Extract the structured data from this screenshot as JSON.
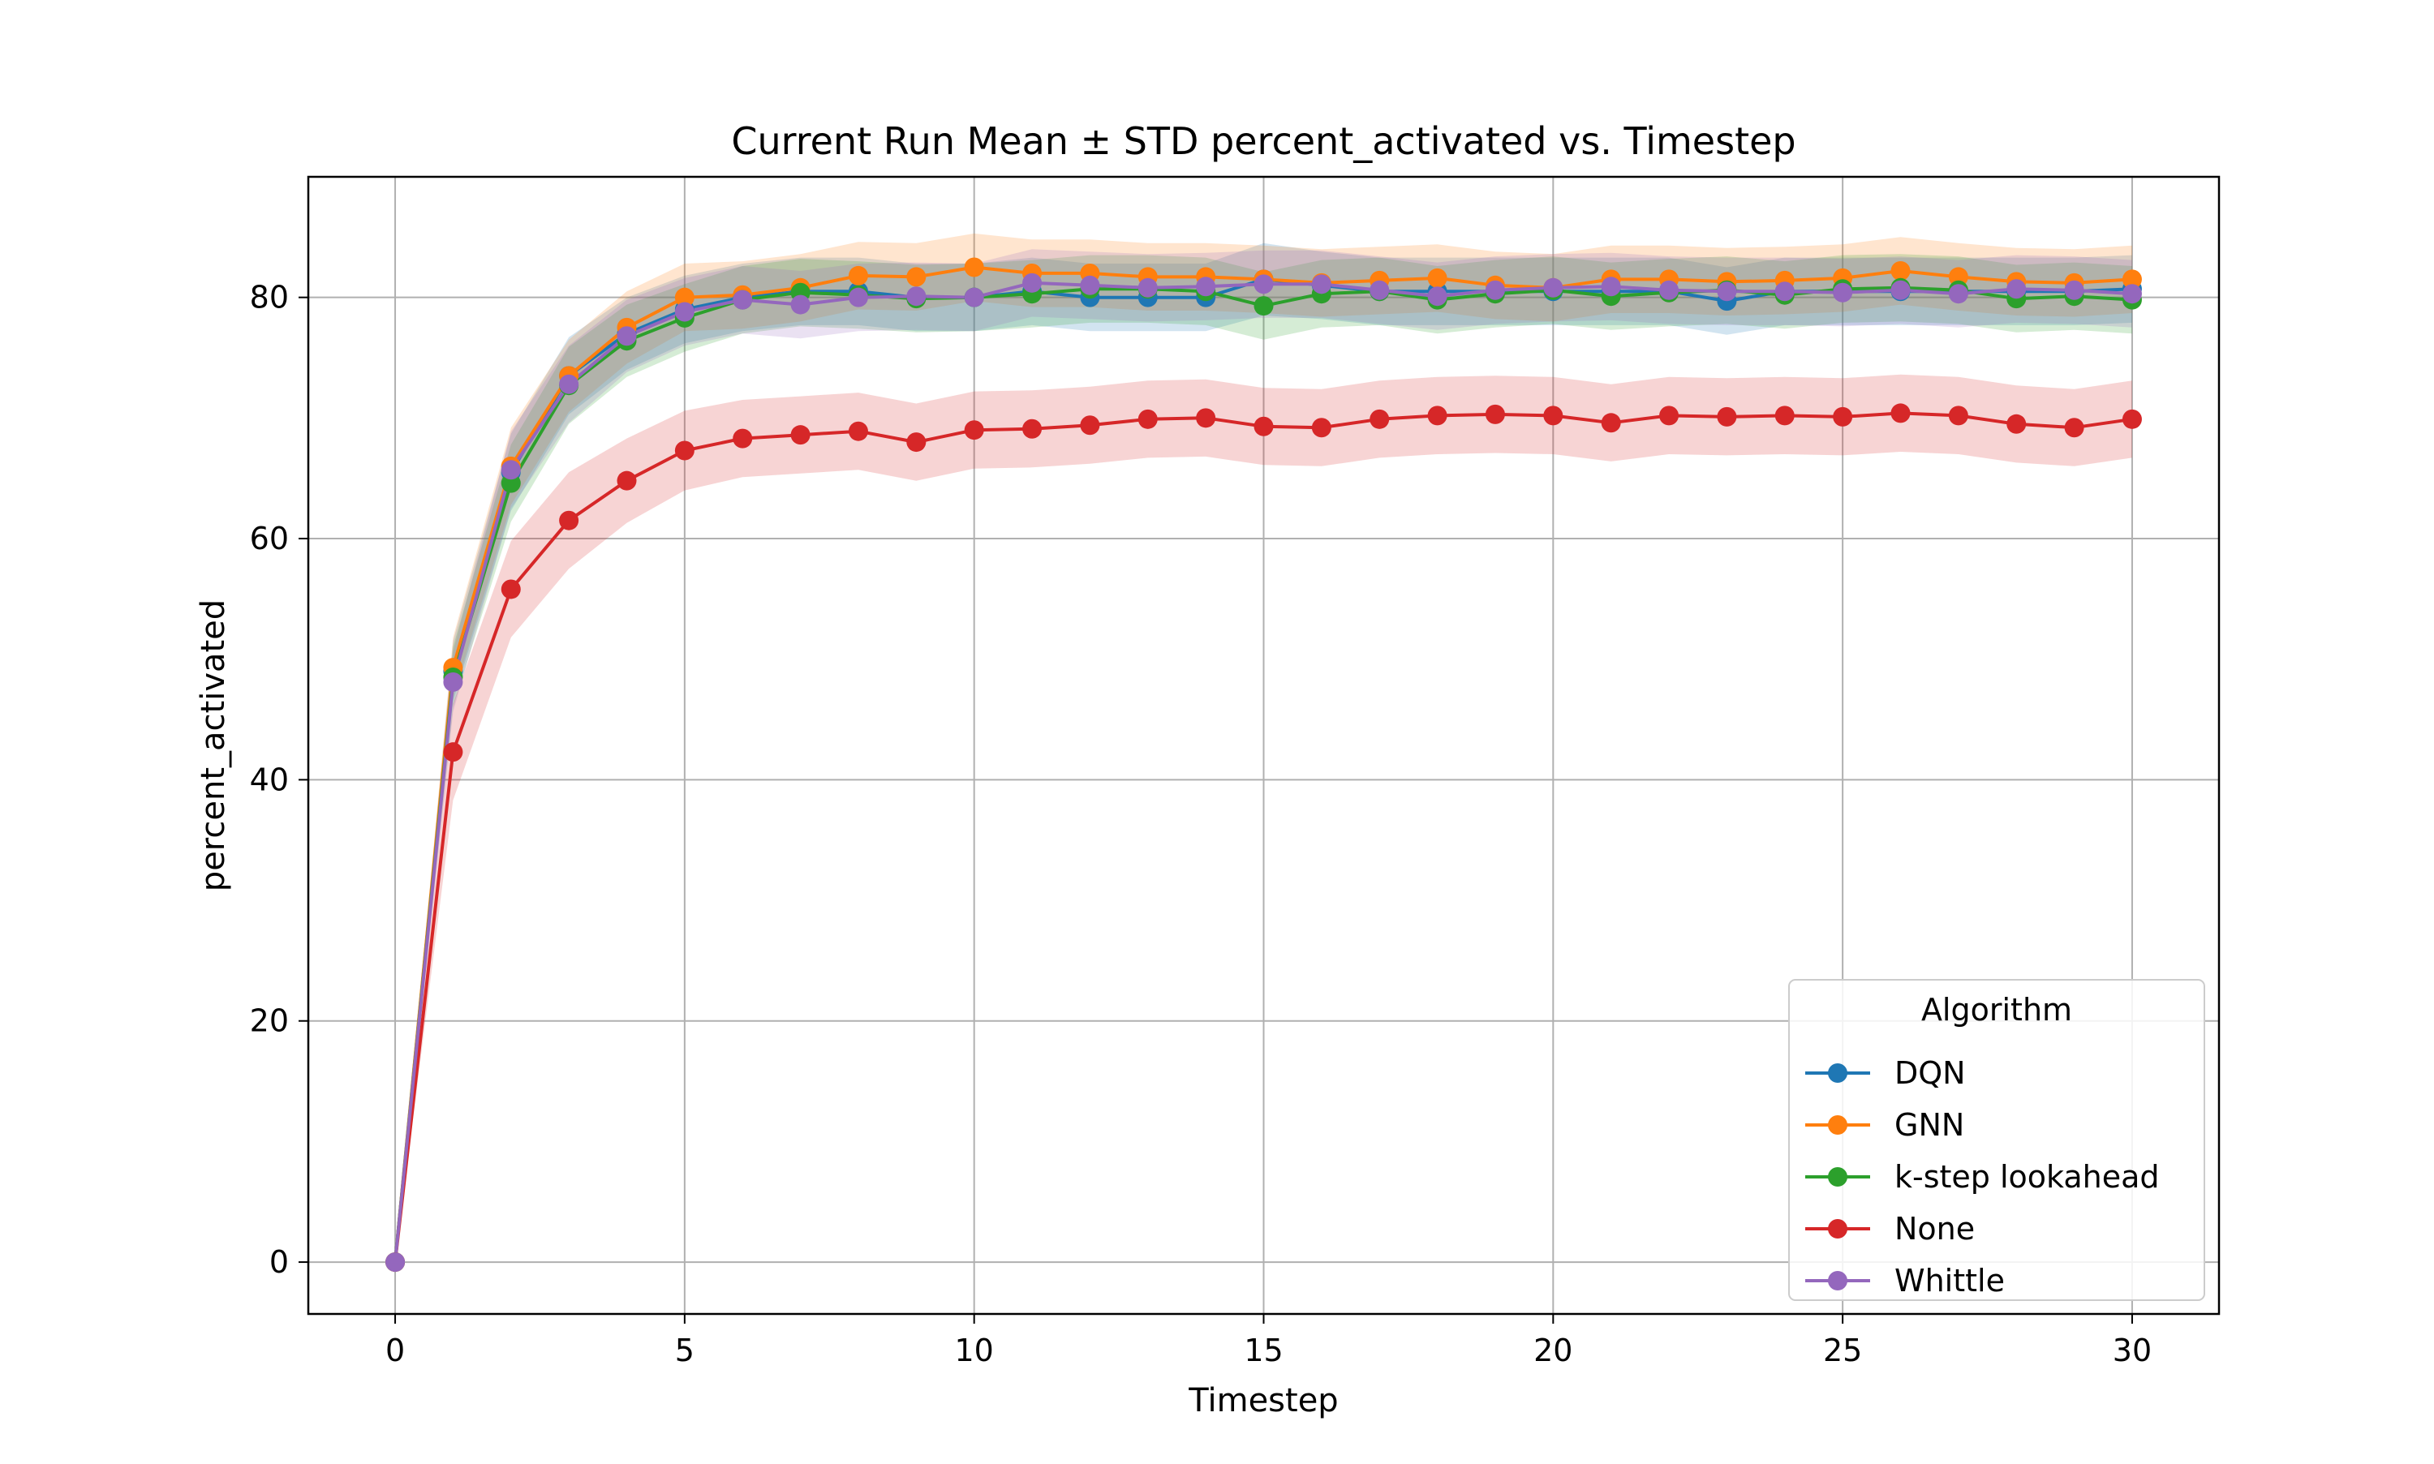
{
  "chart_data": {
    "type": "line",
    "title": "Current Run Mean ± STD percent_activated vs. Timestep",
    "xlabel": "Timestep",
    "ylabel": "percent_activated",
    "xlim": [
      -1.5,
      31.5
    ],
    "ylim": [
      -4.3,
      90.0
    ],
    "xticks": [
      0,
      5,
      10,
      15,
      20,
      25,
      30
    ],
    "yticks": [
      0,
      20,
      40,
      60,
      80
    ],
    "grid": true,
    "legend": {
      "title": "Algorithm",
      "placement": "lower right"
    },
    "x": [
      0,
      1,
      2,
      3,
      4,
      5,
      6,
      7,
      8,
      9,
      10,
      11,
      12,
      13,
      14,
      15,
      16,
      17,
      18,
      19,
      20,
      21,
      22,
      23,
      24,
      25,
      26,
      27,
      28,
      29,
      30
    ],
    "series": [
      {
        "name": "DQN",
        "color": "#1f77b4",
        "values": [
          0,
          49,
          65.5,
          73.5,
          77,
          79,
          80,
          80.5,
          80.5,
          80,
          80,
          80.5,
          80,
          80,
          80,
          81.5,
          81,
          80.5,
          80.5,
          80.5,
          80.5,
          80.5,
          80.5,
          79.7,
          80.5,
          80.5,
          80.5,
          80.5,
          80.5,
          80.5,
          80.7
        ],
        "std": [
          0,
          2.5,
          3.2,
          3.2,
          3,
          2.8,
          2.8,
          2.8,
          2.8,
          2.8,
          2.8,
          2.8,
          2.8,
          2.8,
          2.8,
          3,
          2.8,
          2.8,
          2.8,
          2.8,
          2.8,
          2.8,
          2.8,
          2.8,
          2.8,
          2.8,
          2.8,
          2.8,
          2.8,
          2.8,
          2.8
        ]
      },
      {
        "name": "GNN",
        "color": "#ff7f0e",
        "values": [
          0,
          49.3,
          66,
          73.5,
          77.5,
          80,
          80.2,
          80.8,
          81.8,
          81.7,
          82.5,
          82,
          82,
          81.7,
          81.7,
          81.5,
          81.2,
          81.4,
          81.6,
          81,
          80.8,
          81.5,
          81.5,
          81.3,
          81.4,
          81.6,
          82.2,
          81.7,
          81.3,
          81.2,
          81.5
        ],
        "std": [
          0,
          2.5,
          3.2,
          3,
          3,
          2.8,
          2.8,
          2.8,
          2.8,
          2.8,
          2.8,
          2.8,
          2.8,
          2.8,
          2.8,
          2.8,
          2.8,
          2.8,
          2.8,
          2.8,
          2.8,
          2.8,
          2.8,
          2.8,
          2.8,
          2.8,
          2.8,
          2.8,
          2.8,
          2.8,
          2.8
        ]
      },
      {
        "name": "k-step lookahead",
        "color": "#2ca02c",
        "values": [
          0,
          48.5,
          64.6,
          72.7,
          76.4,
          78.3,
          79.8,
          80.4,
          80.2,
          79.9,
          80,
          80.3,
          80.7,
          80.7,
          80.5,
          79.3,
          80.3,
          80.5,
          79.8,
          80.3,
          80.6,
          80.1,
          80.4,
          80.6,
          80.2,
          80.7,
          80.8,
          80.6,
          79.9,
          80.1,
          79.8
        ],
        "std": [
          0,
          2.5,
          3.2,
          3.2,
          3,
          2.8,
          2.8,
          2.8,
          2.8,
          2.8,
          2.8,
          2.8,
          2.8,
          2.8,
          2.8,
          2.8,
          2.8,
          2.8,
          2.8,
          2.8,
          2.8,
          2.8,
          2.8,
          2.8,
          2.8,
          2.8,
          2.8,
          2.8,
          2.8,
          2.8,
          2.8
        ]
      },
      {
        "name": "None",
        "color": "#d62728",
        "values": [
          0,
          42.3,
          55.8,
          61.5,
          64.8,
          67.3,
          68.3,
          68.6,
          68.9,
          68,
          69,
          69.1,
          69.4,
          69.9,
          70,
          69.3,
          69.2,
          69.9,
          70.2,
          70.3,
          70.2,
          69.6,
          70.2,
          70.1,
          70.2,
          70.1,
          70.4,
          70.2,
          69.5,
          69.2,
          69.9
        ],
        "std": [
          0,
          4,
          4,
          4,
          3.5,
          3.3,
          3.2,
          3.2,
          3.2,
          3.2,
          3.2,
          3.2,
          3.2,
          3.2,
          3.2,
          3.2,
          3.2,
          3.2,
          3.2,
          3.2,
          3.2,
          3.2,
          3.2,
          3.2,
          3.2,
          3.2,
          3.2,
          3.2,
          3.2,
          3.2,
          3.2
        ]
      },
      {
        "name": "Whittle",
        "color": "#9467bd",
        "values": [
          0,
          48.1,
          65.7,
          72.8,
          76.8,
          78.8,
          79.8,
          79.4,
          80,
          80.1,
          80,
          81.2,
          81,
          80.8,
          80.9,
          81.1,
          81.1,
          80.6,
          80.1,
          80.6,
          80.8,
          80.9,
          80.6,
          80.5,
          80.5,
          80.4,
          80.6,
          80.3,
          80.7,
          80.6,
          80.3
        ],
        "std": [
          0,
          2.5,
          3.2,
          3.2,
          3,
          2.8,
          2.8,
          2.8,
          2.8,
          2.8,
          2.8,
          2.8,
          2.8,
          2.8,
          2.8,
          2.8,
          2.8,
          2.8,
          2.8,
          2.8,
          2.8,
          2.8,
          2.8,
          2.8,
          2.8,
          2.8,
          2.8,
          2.8,
          2.8,
          2.8,
          2.8
        ]
      }
    ]
  }
}
